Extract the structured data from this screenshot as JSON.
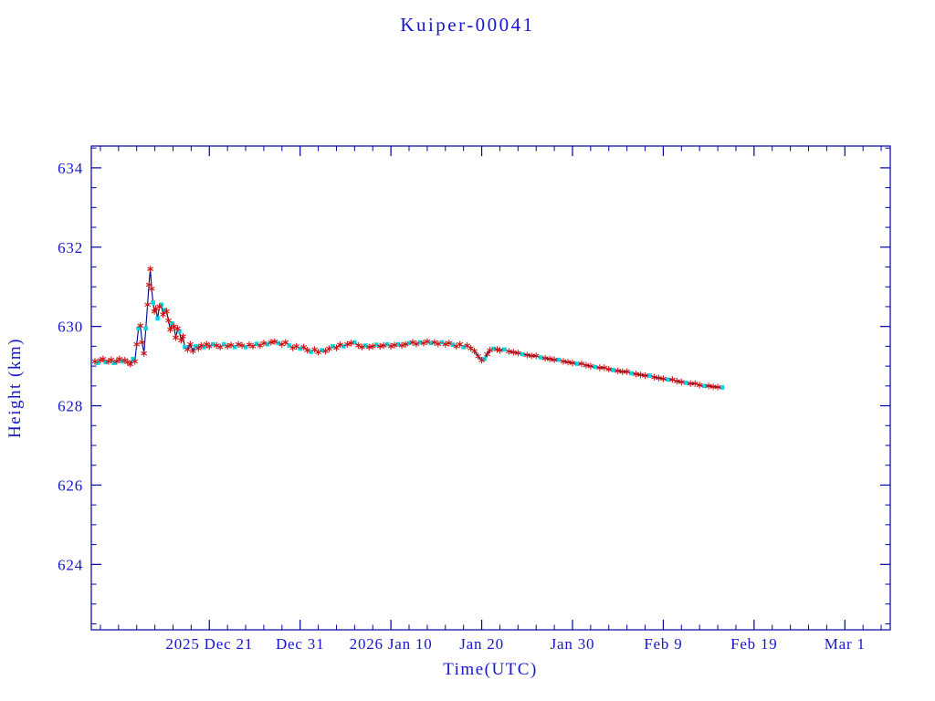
{
  "page": {
    "background": "#ffffff"
  },
  "chart_data": {
    "type": "line",
    "title": "Kuiper-00041",
    "xlabel": "Time(UTC)",
    "ylabel": "Height (km)",
    "x_unit": "days, where day 0 = left edge of plot (approx 2025 Dec 8)",
    "xlim": [
      0,
      88
    ],
    "ylim": [
      622.35,
      634.55
    ],
    "y_ticks": [
      624,
      626,
      628,
      630,
      632,
      634
    ],
    "y_minor_step": 0.5,
    "x_minor_step": 2,
    "x_ticks": [
      {
        "day": 13,
        "label": "2025 Dec 21"
      },
      {
        "day": 23,
        "label": "Dec 31"
      },
      {
        "day": 33,
        "label": "2026 Jan 10"
      },
      {
        "day": 43,
        "label": "Jan 20"
      },
      {
        "day": 53,
        "label": "Jan 30"
      },
      {
        "day": 63,
        "label": "Feb 9"
      },
      {
        "day": 73,
        "label": "Feb 19"
      },
      {
        "day": 83,
        "label": "Mar 1"
      }
    ],
    "grid": false,
    "legend": null,
    "colors": {
      "line": "#00008b",
      "marker_primary": "#cc1414",
      "marker_secondary": "#00d5e0",
      "axis": "#0000a0",
      "text": "#1616cc"
    },
    "markers": {
      "primary": "red-asterisk",
      "secondary": "cyan-square"
    },
    "series": [
      {
        "name": "height",
        "points": [
          [
            0.4,
            629.12,
            0
          ],
          [
            0.7,
            629.08,
            1
          ],
          [
            1.0,
            629.15,
            0
          ],
          [
            1.3,
            629.18,
            0
          ],
          [
            1.6,
            629.1,
            1
          ],
          [
            1.9,
            629.12,
            0
          ],
          [
            2.2,
            629.16,
            0
          ],
          [
            2.5,
            629.08,
            1
          ],
          [
            2.8,
            629.12,
            0
          ],
          [
            3.1,
            629.18,
            0
          ],
          [
            3.4,
            629.12,
            1
          ],
          [
            3.7,
            629.15,
            0
          ],
          [
            4.0,
            629.1,
            0
          ],
          [
            4.3,
            629.05,
            0
          ],
          [
            4.6,
            629.18,
            1
          ],
          [
            4.8,
            629.12,
            0
          ],
          [
            5.0,
            629.55,
            0
          ],
          [
            5.2,
            629.95,
            1
          ],
          [
            5.4,
            630.02,
            0
          ],
          [
            5.6,
            629.6,
            0
          ],
          [
            5.8,
            629.32,
            0
          ],
          [
            6.0,
            629.95,
            1
          ],
          [
            6.2,
            630.55,
            0
          ],
          [
            6.35,
            631.05,
            0
          ],
          [
            6.5,
            631.45,
            0
          ],
          [
            6.65,
            630.95,
            0
          ],
          [
            6.8,
            630.6,
            1
          ],
          [
            6.95,
            630.38,
            0
          ],
          [
            7.1,
            630.45,
            0
          ],
          [
            7.3,
            630.2,
            1
          ],
          [
            7.5,
            630.5,
            0
          ],
          [
            7.7,
            630.55,
            1
          ],
          [
            7.9,
            630.3,
            0
          ],
          [
            8.1,
            630.42,
            1
          ],
          [
            8.3,
            630.38,
            0
          ],
          [
            8.5,
            630.15,
            0
          ],
          [
            8.7,
            629.92,
            0
          ],
          [
            8.9,
            630.08,
            1
          ],
          [
            9.1,
            630.0,
            0
          ],
          [
            9.3,
            629.72,
            0
          ],
          [
            9.5,
            629.95,
            0
          ],
          [
            9.7,
            629.88,
            1
          ],
          [
            9.9,
            629.65,
            0
          ],
          [
            10.1,
            629.75,
            0
          ],
          [
            10.3,
            629.48,
            1
          ],
          [
            10.6,
            629.42,
            0
          ],
          [
            10.9,
            629.55,
            0
          ],
          [
            11.2,
            629.38,
            0
          ],
          [
            11.5,
            629.5,
            1
          ],
          [
            11.8,
            629.45,
            0
          ],
          [
            12.1,
            629.52,
            0
          ],
          [
            12.4,
            629.48,
            1
          ],
          [
            12.7,
            629.55,
            0
          ],
          [
            13.0,
            629.5,
            0
          ],
          [
            13.4,
            629.55,
            1
          ],
          [
            13.8,
            629.52,
            0
          ],
          [
            14.2,
            629.48,
            0
          ],
          [
            14.6,
            629.55,
            1
          ],
          [
            15.0,
            629.5,
            0
          ],
          [
            15.4,
            629.53,
            0
          ],
          [
            15.8,
            629.48,
            1
          ],
          [
            16.2,
            629.55,
            0
          ],
          [
            16.6,
            629.52,
            0
          ],
          [
            17.0,
            629.48,
            1
          ],
          [
            17.4,
            629.54,
            0
          ],
          [
            17.8,
            629.5,
            0
          ],
          [
            18.2,
            629.56,
            1
          ],
          [
            18.6,
            629.52,
            0
          ],
          [
            19.0,
            629.58,
            0
          ],
          [
            19.4,
            629.55,
            1
          ],
          [
            19.8,
            629.6,
            0
          ],
          [
            20.2,
            629.62,
            0
          ],
          [
            20.6,
            629.58,
            1
          ],
          [
            21.0,
            629.55,
            0
          ],
          [
            21.4,
            629.6,
            0
          ],
          [
            21.8,
            629.52,
            1
          ],
          [
            22.2,
            629.46,
            0
          ],
          [
            22.6,
            629.5,
            0
          ],
          [
            23.0,
            629.44,
            1
          ],
          [
            23.4,
            629.48,
            0
          ],
          [
            23.8,
            629.4,
            0
          ],
          [
            24.2,
            629.36,
            1
          ],
          [
            24.6,
            629.42,
            0
          ],
          [
            25.0,
            629.35,
            0
          ],
          [
            25.4,
            629.4,
            1
          ],
          [
            25.8,
            629.38,
            0
          ],
          [
            26.2,
            629.44,
            0
          ],
          [
            26.6,
            629.5,
            1
          ],
          [
            27.0,
            629.46,
            0
          ],
          [
            27.4,
            629.54,
            0
          ],
          [
            27.8,
            629.5,
            1
          ],
          [
            28.2,
            629.55,
            0
          ],
          [
            28.6,
            629.58,
            0
          ],
          [
            29.0,
            629.6,
            1
          ],
          [
            29.4,
            629.52,
            0
          ],
          [
            29.8,
            629.48,
            0
          ],
          [
            30.2,
            629.52,
            1
          ],
          [
            30.6,
            629.48,
            0
          ],
          [
            31.0,
            629.5,
            0
          ],
          [
            31.4,
            629.54,
            1
          ],
          [
            31.8,
            629.5,
            0
          ],
          [
            32.2,
            629.52,
            0
          ],
          [
            32.6,
            629.55,
            1
          ],
          [
            33.0,
            629.5,
            0
          ],
          [
            33.4,
            629.53,
            0
          ],
          [
            33.8,
            629.55,
            1
          ],
          [
            34.2,
            629.52,
            0
          ],
          [
            34.6,
            629.55,
            0
          ],
          [
            35.0,
            629.58,
            1
          ],
          [
            35.4,
            629.6,
            0
          ],
          [
            35.8,
            629.56,
            0
          ],
          [
            36.2,
            629.6,
            1
          ],
          [
            36.6,
            629.58,
            0
          ],
          [
            37.0,
            629.62,
            0
          ],
          [
            37.4,
            629.58,
            1
          ],
          [
            37.8,
            629.6,
            0
          ],
          [
            38.2,
            629.56,
            0
          ],
          [
            38.6,
            629.6,
            1
          ],
          [
            39.0,
            629.55,
            0
          ],
          [
            39.4,
            629.58,
            0
          ],
          [
            39.8,
            629.54,
            1
          ],
          [
            40.2,
            629.5,
            0
          ],
          [
            40.6,
            629.55,
            0
          ],
          [
            41.0,
            629.48,
            1
          ],
          [
            41.4,
            629.52,
            0
          ],
          [
            41.8,
            629.45,
            0
          ],
          [
            42.2,
            629.38,
            0
          ],
          [
            42.6,
            629.25,
            0
          ],
          [
            43.0,
            629.15,
            0
          ],
          [
            43.3,
            629.18,
            1
          ],
          [
            43.6,
            629.3,
            0
          ],
          [
            43.9,
            629.4,
            0
          ],
          [
            44.3,
            629.44,
            1
          ],
          [
            44.7,
            629.42,
            0
          ],
          [
            45.0,
            629.4,
            0
          ],
          [
            45.5,
            629.42,
            1
          ],
          [
            46.0,
            629.37,
            0
          ],
          [
            46.5,
            629.35,
            0
          ],
          [
            47.0,
            629.33,
            0
          ],
          [
            47.5,
            629.3,
            1
          ],
          [
            48.0,
            629.28,
            0
          ],
          [
            48.5,
            629.26,
            0
          ],
          [
            49.0,
            629.26,
            0
          ],
          [
            49.5,
            629.22,
            1
          ],
          [
            50.0,
            629.2,
            0
          ],
          [
            50.5,
            629.18,
            0
          ],
          [
            51.0,
            629.16,
            0
          ],
          [
            51.5,
            629.16,
            1
          ],
          [
            52.0,
            629.12,
            0
          ],
          [
            52.5,
            629.1,
            0
          ],
          [
            53.0,
            629.08,
            0
          ],
          [
            53.5,
            629.06,
            1
          ],
          [
            54.0,
            629.06,
            0
          ],
          [
            54.5,
            629.02,
            0
          ],
          [
            55.0,
            629.0,
            0
          ],
          [
            55.5,
            628.98,
            1
          ],
          [
            56.0,
            628.96,
            0
          ],
          [
            56.5,
            628.96,
            0
          ],
          [
            57.0,
            628.92,
            0
          ],
          [
            57.5,
            628.9,
            1
          ],
          [
            58.0,
            628.88,
            0
          ],
          [
            58.5,
            628.86,
            0
          ],
          [
            59.0,
            628.86,
            0
          ],
          [
            59.5,
            628.82,
            1
          ],
          [
            60.0,
            628.8,
            0
          ],
          [
            60.5,
            628.78,
            0
          ],
          [
            61.0,
            628.76,
            0
          ],
          [
            61.5,
            628.76,
            1
          ],
          [
            62.0,
            628.72,
            0
          ],
          [
            62.5,
            628.7,
            0
          ],
          [
            63.0,
            628.68,
            0
          ],
          [
            63.5,
            628.66,
            1
          ],
          [
            64.0,
            628.66,
            0
          ],
          [
            64.5,
            628.62,
            0
          ],
          [
            65.0,
            628.6,
            0
          ],
          [
            65.5,
            628.58,
            1
          ],
          [
            66.0,
            628.56,
            0
          ],
          [
            66.5,
            628.56,
            0
          ],
          [
            67.0,
            628.52,
            0
          ],
          [
            67.5,
            628.5,
            1
          ],
          [
            68.0,
            628.5,
            0
          ],
          [
            68.5,
            628.48,
            0
          ],
          [
            69.0,
            628.47,
            0
          ],
          [
            69.5,
            628.46,
            1
          ]
        ]
      }
    ]
  }
}
